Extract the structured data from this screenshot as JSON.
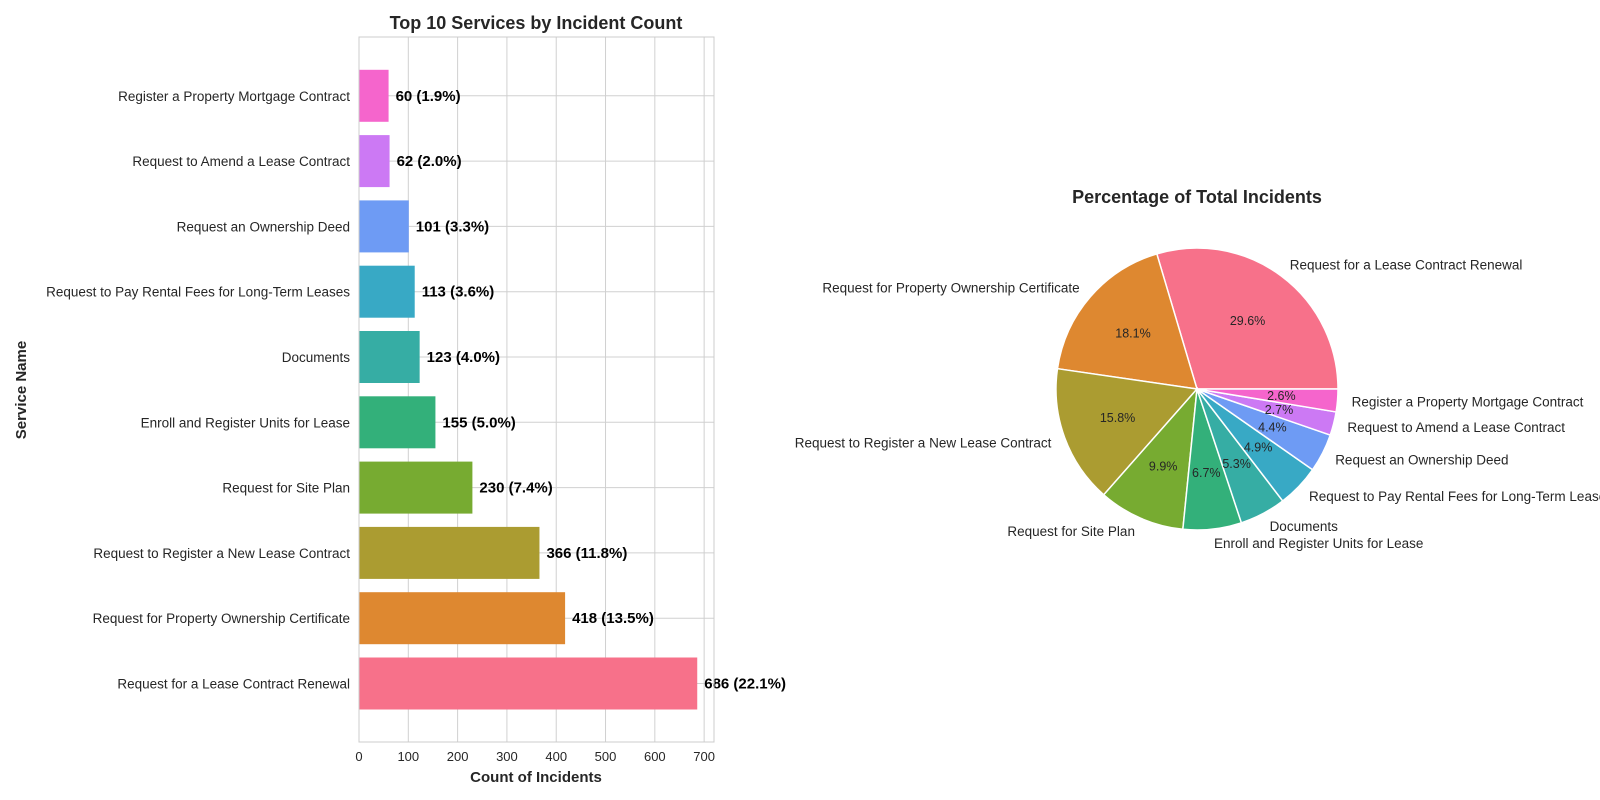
{
  "chart_data": [
    {
      "type": "bar",
      "orientation": "horizontal",
      "title": "Top 10 Services by Incident Count",
      "xlabel": "Count of Incidents",
      "ylabel": "Service Name",
      "xlim": [
        0,
        720
      ],
      "xticks": [
        0,
        100,
        200,
        300,
        400,
        500,
        600,
        700
      ],
      "grid": true,
      "categories": [
        "Request for a Lease Contract Renewal",
        "Request for Property Ownership Certificate",
        "Request to Register a New Lease Contract",
        "Request for Site Plan",
        "Enroll and Register Units for Lease",
        "Documents",
        "Request to Pay Rental Fees for Long-Term Leases",
        "Request an Ownership Deed",
        "Request to Amend a Lease Contract",
        "Register a Property Mortgage Contract"
      ],
      "values": [
        686,
        418,
        366,
        230,
        155,
        123,
        113,
        101,
        62,
        60
      ],
      "data_labels": [
        "686 (22.1%)",
        "418 (13.5%)",
        "366 (11.8%)",
        "230 (7.4%)",
        "155 (5.0%)",
        "123 (4.0%)",
        "113 (3.6%)",
        "101 (3.3%)",
        "62 (2.0%)",
        "60 (1.9%)"
      ],
      "colors": [
        "#f7718a",
        "#de8830",
        "#ab9c31",
        "#77ab31",
        "#33b07a",
        "#36ada4",
        "#38a9c5",
        "#6e9bf4",
        "#cc79f4",
        "#f565cc"
      ]
    },
    {
      "type": "pie",
      "title": "Percentage of Total Incidents",
      "labels": [
        "Request for a Lease Contract Renewal",
        "Request for Property Ownership Certificate",
        "Request to Register a New Lease Contract",
        "Request for Site Plan",
        "Enroll and Register Units for Lease",
        "Documents",
        "Request to Pay Rental Fees for Long-Term Leases",
        "Request an Ownership Deed",
        "Request to Amend a Lease Contract",
        "Register a Property Mortgage Contract"
      ],
      "values": [
        29.6,
        18.1,
        15.8,
        9.9,
        6.7,
        5.3,
        4.9,
        4.4,
        2.7,
        2.6
      ],
      "pct_labels": [
        "29.6%",
        "18.1%",
        "15.8%",
        "9.9%",
        "6.7%",
        "5.3%",
        "4.9%",
        "4.4%",
        "2.7%",
        "2.6%"
      ],
      "start_angle_deg": 0,
      "direction": "counterclockwise",
      "colors": [
        "#f7718a",
        "#de8830",
        "#ab9c31",
        "#77ab31",
        "#33b07a",
        "#36ada4",
        "#38a9c5",
        "#6e9bf4",
        "#cc79f4",
        "#f565cc"
      ]
    }
  ]
}
